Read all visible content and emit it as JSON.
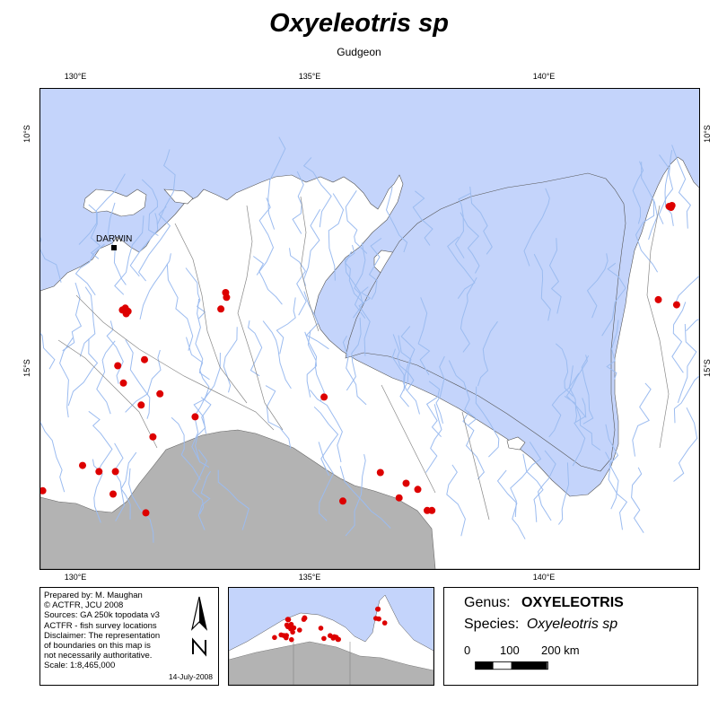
{
  "title": "Oxyeleotris sp",
  "subtitle": "Gudgeon",
  "axes": {
    "lon_ticks": [
      "130°E",
      "135°E",
      "140°E"
    ],
    "lat_ticks": [
      "10°S",
      "15°S"
    ]
  },
  "places": [
    {
      "name": "DARWIN",
      "lon": 130.84,
      "lat": -12.46
    }
  ],
  "survey_locations": [
    [
      142.46,
      -10.71
    ],
    [
      142.5,
      -10.73
    ],
    [
      142.52,
      -10.69
    ],
    [
      142.23,
      -12.7
    ],
    [
      142.62,
      -12.81
    ],
    [
      143.38,
      -13.68
    ],
    [
      133.0,
      -12.55
    ],
    [
      133.02,
      -12.65
    ],
    [
      132.9,
      -12.9
    ],
    [
      130.8,
      -12.92
    ],
    [
      130.86,
      -12.88
    ],
    [
      130.92,
      -12.95
    ],
    [
      130.88,
      -13.0
    ],
    [
      130.7,
      -14.11
    ],
    [
      131.27,
      -13.98
    ],
    [
      130.82,
      -14.48
    ],
    [
      131.6,
      -14.71
    ],
    [
      131.2,
      -14.95
    ],
    [
      132.35,
      -15.2
    ],
    [
      131.45,
      -15.63
    ],
    [
      135.1,
      -14.78
    ],
    [
      129.95,
      -16.24
    ],
    [
      130.3,
      -16.37
    ],
    [
      130.65,
      -16.37
    ],
    [
      130.6,
      -16.85
    ],
    [
      131.3,
      -17.25
    ],
    [
      129.1,
      -16.78
    ],
    [
      136.3,
      -16.39
    ],
    [
      136.85,
      -16.62
    ],
    [
      137.1,
      -16.75
    ],
    [
      136.7,
      -16.93
    ],
    [
      135.5,
      -17.0
    ],
    [
      137.3,
      -17.2
    ],
    [
      137.4,
      -17.2
    ]
  ],
  "credits": {
    "lines": [
      "Prepared by: M. Maughan",
      "© ACTFR, JCU 2008",
      "Sources: GA 250k topodata v3",
      "ACTFR - fish survey locations",
      "Disclaimer: The representation",
      "of boundaries on this map is",
      "not necessarily authoritative.",
      "Scale: 1:8,465,000"
    ],
    "date": "14-July-2008"
  },
  "legend": {
    "genus_label": "Genus:",
    "genus_value": "OXYELEOTRIS",
    "species_label": "Species:",
    "species_value": "Oxyeleotris sp",
    "scale_labels": [
      "0",
      "100",
      "200 km"
    ]
  },
  "colors": {
    "water": "#c4d4fb",
    "land": "#ffffff",
    "outside_region": "#b3b3b3",
    "rivers": "#9cbcf0",
    "catchments": "#888888",
    "points": "#dd0000"
  },
  "icons": {
    "north_arrow": "north-arrow-icon",
    "town": "square-marker-icon"
  }
}
